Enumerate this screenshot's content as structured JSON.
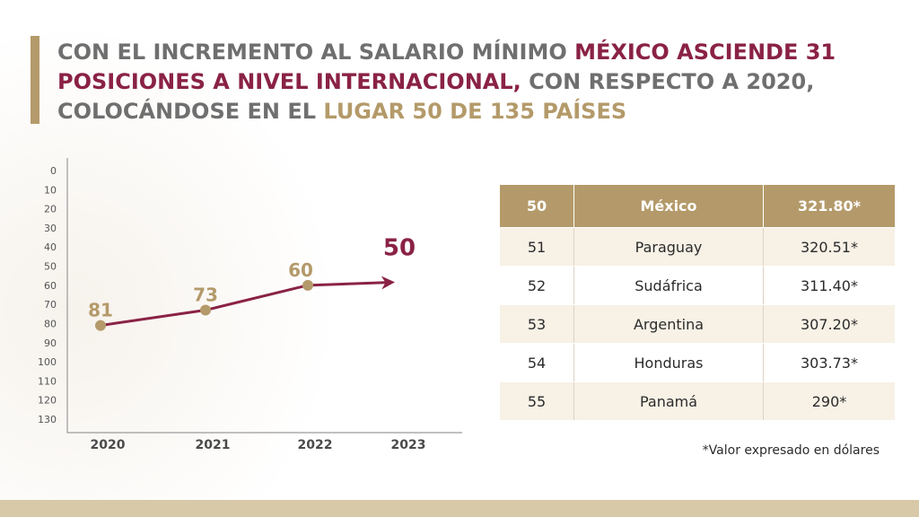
{
  "headline": {
    "part1": "CON EL INCREMENTO AL SALARIO MÍNIMO ",
    "part2": "MÉXICO ASCIENDE 31 POSICIONES A NIVEL INTERNACIONAL,",
    "part3": " CON RESPECTO A 2020, COLOCÁNDOSE EN EL ",
    "part4": "LUGAR 50 DE 135 PAÍSES"
  },
  "colors": {
    "accent_red": "#8a2245",
    "accent_gold": "#b49a6a",
    "text_gray": "#6f6f6f"
  },
  "chart_data": {
    "type": "line",
    "x": [
      "2020",
      "2021",
      "2022",
      "2023"
    ],
    "y": [
      81,
      73,
      60,
      50
    ],
    "point_labels": [
      "81",
      "73",
      "60",
      "50"
    ],
    "yticks": [
      "0",
      "10",
      "20",
      "30",
      "40",
      "50",
      "60",
      "70",
      "80",
      "90",
      "100",
      "110",
      "120",
      "130"
    ],
    "ylim": [
      0,
      130
    ],
    "y_inverted": true,
    "grid": false,
    "xlabel": "",
    "ylabel": ""
  },
  "table": {
    "rows": [
      {
        "rank": "50",
        "country": "México",
        "value": "321.80*"
      },
      {
        "rank": "51",
        "country": "Paraguay",
        "value": "320.51*"
      },
      {
        "rank": "52",
        "country": "Sudáfrica",
        "value": "311.40*"
      },
      {
        "rank": "53",
        "country": "Argentina",
        "value": "307.20*"
      },
      {
        "rank": "54",
        "country": "Honduras",
        "value": "303.73*"
      },
      {
        "rank": "55",
        "country": "Panamá",
        "value": "290*"
      }
    ]
  },
  "footnote": "*Valor expresado en dólares"
}
